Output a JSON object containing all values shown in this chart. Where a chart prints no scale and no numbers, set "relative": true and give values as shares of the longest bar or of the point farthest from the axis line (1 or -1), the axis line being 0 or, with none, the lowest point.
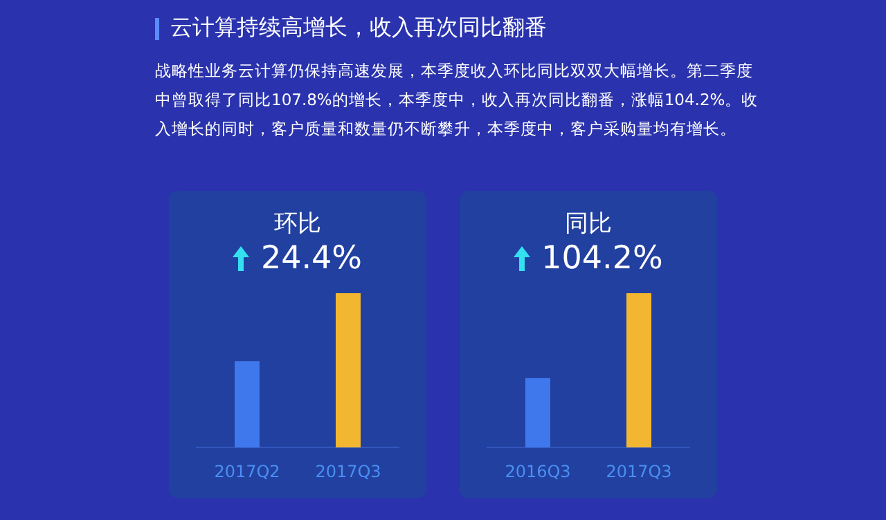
{
  "chart_data": [
    {
      "type": "other",
      "title": "云计算持续高增长，收入再次同比翻番",
      "annotations": [
        "战略性业务云计算仍保持高速发展，本季度收入环比同比双双大幅增长。第二季度中曾取得了同比107.8%的增长，本季度中，收入再次同比翻番，涨幅104.2%。收入增长的同时，客户质量和数量仍不断攀升，本季度中，客户采购量均有增长。"
      ]
    },
    {
      "type": "bar",
      "title": "环比",
      "subtitle": "24.4%",
      "relative": true,
      "categories": [
        "2017Q2",
        "2017Q3"
      ],
      "values": [
        0.56,
        1
      ],
      "colors": [
        "#3f78ec",
        "#f2b630"
      ]
    },
    {
      "type": "bar",
      "title": "同比",
      "subtitle": "104.2%",
      "relative": true,
      "categories": [
        "2016Q3",
        "2017Q3"
      ],
      "values": [
        0.45,
        1
      ],
      "colors": [
        "#3f78ec",
        "#f2b630"
      ]
    }
  ]
}
